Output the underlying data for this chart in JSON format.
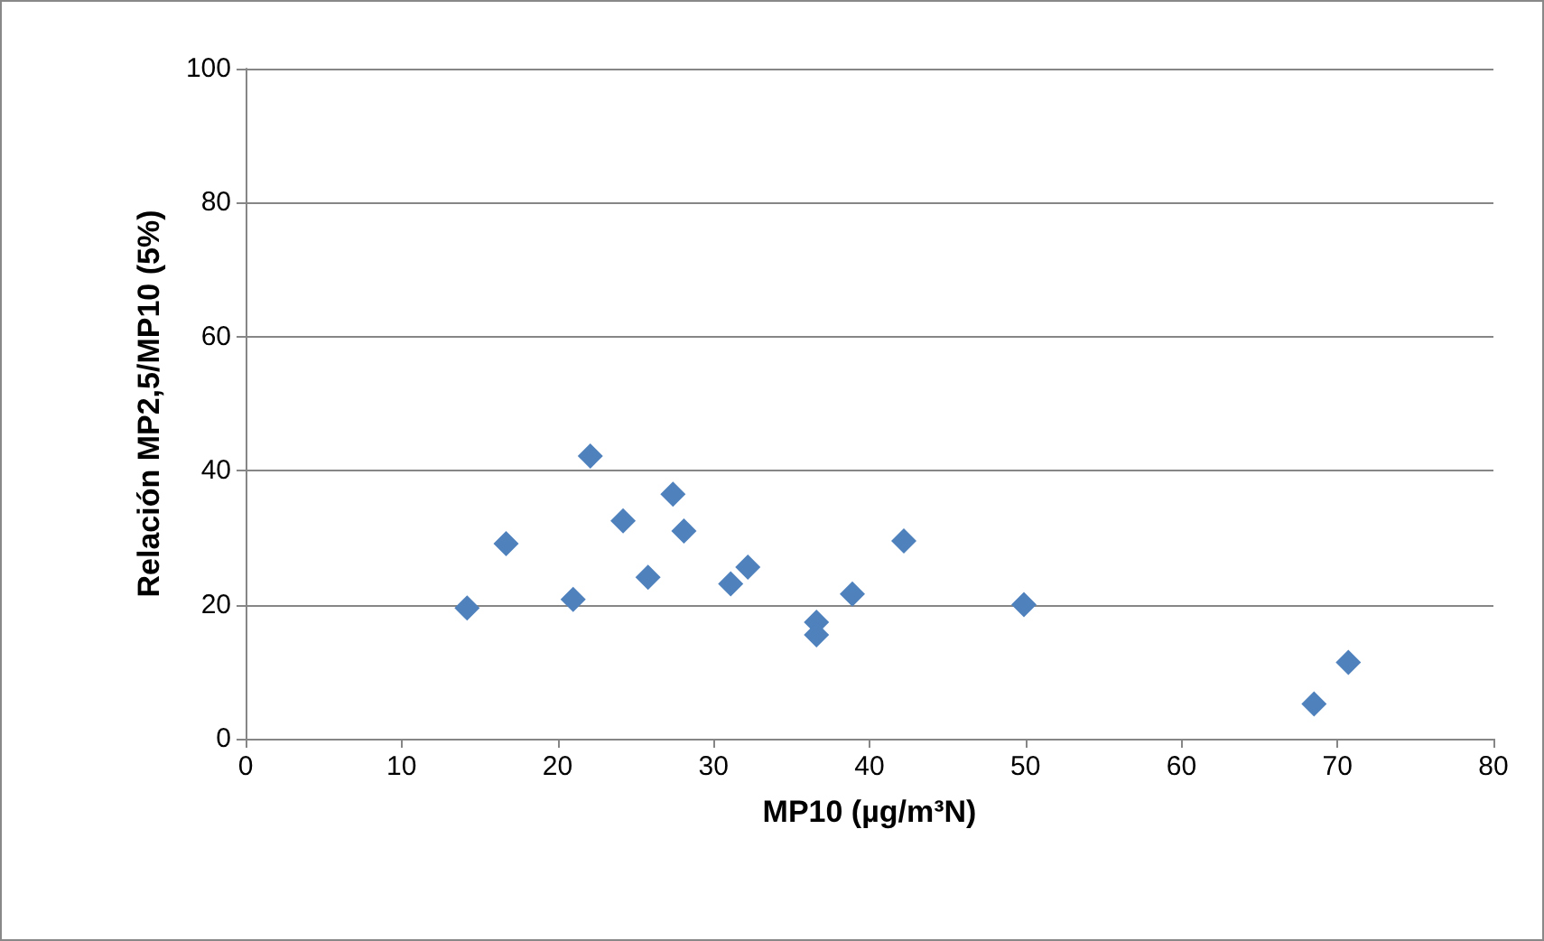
{
  "chart_data": {
    "type": "scatter",
    "xlabel": "MP10 (µg/m³N)",
    "ylabel": "Relación MP2,5/MP10 (5%)",
    "x": [
      14.2,
      16.7,
      21.0,
      22.1,
      24.2,
      25.8,
      27.4,
      28.1,
      31.1,
      32.2,
      36.6,
      36.6,
      38.9,
      42.2,
      49.9,
      68.5,
      70.7
    ],
    "series": [
      {
        "color": "#4f81bd",
        "values": [
          19.5,
          29.1,
          20.8,
          42.2,
          32.5,
          24.1,
          36.5,
          31.0,
          23.1,
          25.6,
          17.4,
          15.5,
          21.6,
          29.5,
          20.0,
          5.2,
          11.4
        ]
      }
    ],
    "xlim": [
      0,
      80
    ],
    "xticks": [
      0,
      10,
      20,
      30,
      40,
      50,
      60,
      70,
      80
    ],
    "ylim": [
      0,
      100
    ],
    "yticks": [
      0,
      20,
      40,
      60,
      80,
      100
    ],
    "grid": "y",
    "marker": "diamond"
  }
}
